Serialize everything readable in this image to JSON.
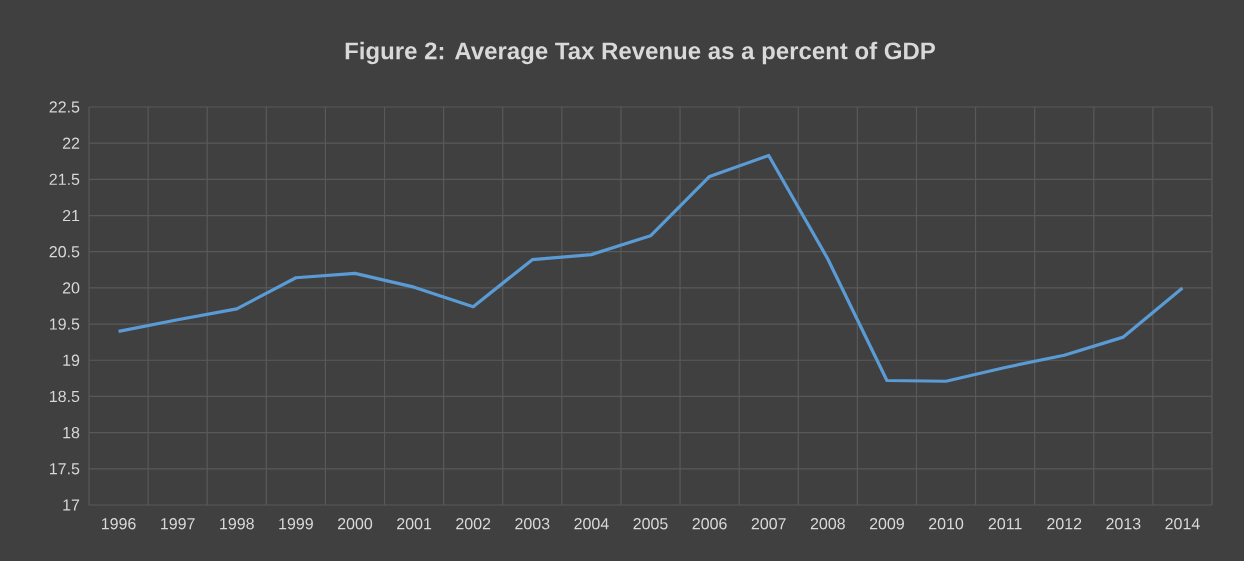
{
  "chart_data": {
    "type": "line",
    "title": "Figure 2: Average Tax Revenue as a percent of GDP",
    "categories": [
      "1996",
      "1997",
      "1998",
      "1999",
      "2000",
      "2001",
      "2002",
      "2003",
      "2004",
      "2005",
      "2006",
      "2007",
      "2008",
      "2009",
      "2010",
      "2011",
      "2012",
      "2013",
      "2014"
    ],
    "values": [
      19.4,
      19.56,
      19.71,
      20.14,
      20.2,
      20.01,
      19.74,
      20.39,
      20.46,
      20.72,
      21.54,
      21.83,
      20.4,
      18.72,
      18.71,
      18.9,
      19.07,
      19.32,
      20.0
    ],
    "color": "#5b9bd5",
    "ylim": [
      17,
      22.5
    ],
    "yticks": [
      17,
      17.5,
      18,
      18.5,
      19,
      19.5,
      20,
      20.5,
      21,
      21.5,
      22,
      22.5
    ],
    "grid": true
  }
}
